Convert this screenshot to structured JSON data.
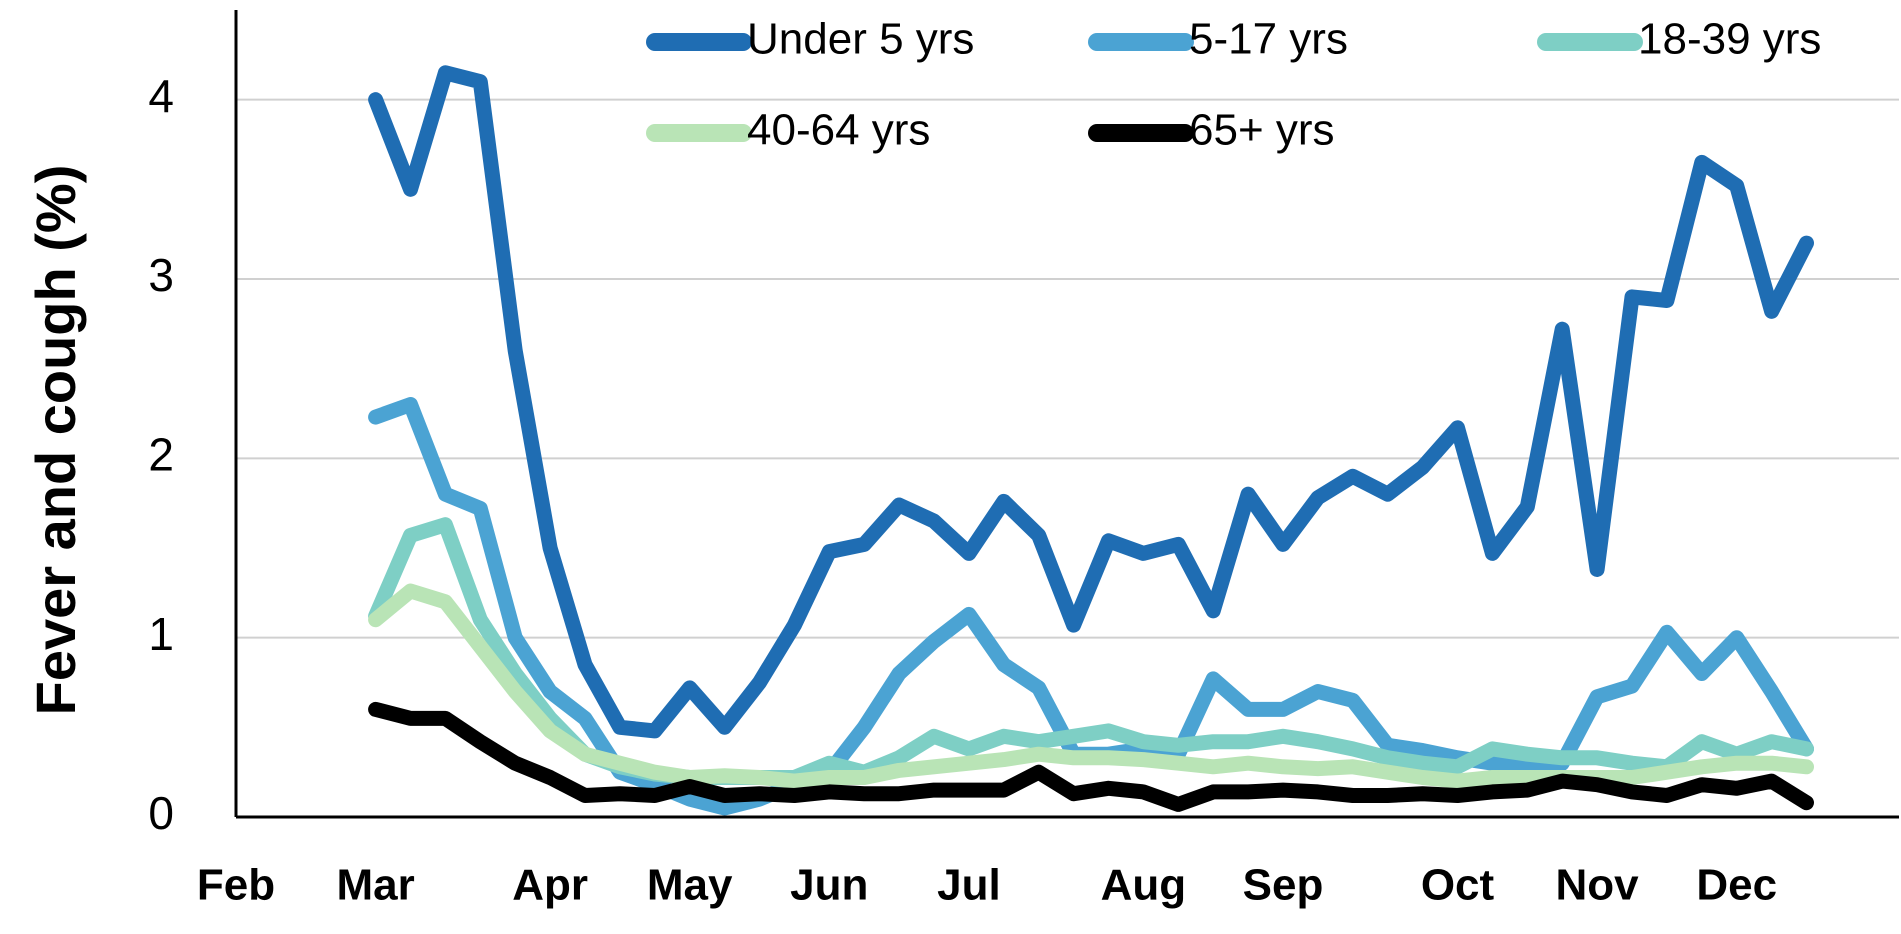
{
  "chart_data": {
    "type": "line",
    "ylabel": "Fever and cough (%)",
    "categories": [
      "Feb",
      null,
      null,
      null,
      "Mar",
      null,
      null,
      null,
      null,
      "Apr",
      null,
      null,
      null,
      "May",
      null,
      null,
      null,
      "Jun",
      null,
      null,
      null,
      "Jul",
      null,
      null,
      null,
      null,
      "Aug",
      null,
      null,
      null,
      "Sep",
      null,
      null,
      null,
      null,
      "Oct",
      null,
      null,
      null,
      "Nov",
      null,
      null,
      null,
      "Dec",
      null,
      null
    ],
    "series": [
      {
        "name": "Under 5 yrs",
        "color": "#1f6db3",
        "values": [
          null,
          null,
          null,
          null,
          4.0,
          3.5,
          4.15,
          4.1,
          2.6,
          1.5,
          0.85,
          0.5,
          0.48,
          0.72,
          0.5,
          0.75,
          1.07,
          1.48,
          1.52,
          1.74,
          1.65,
          1.47,
          1.76,
          1.57,
          1.07,
          1.54,
          1.47,
          1.52,
          1.15,
          1.8,
          1.52,
          1.78,
          1.9,
          1.8,
          1.95,
          2.17,
          1.47,
          1.73,
          2.72,
          1.38,
          2.9,
          2.88,
          3.65,
          3.52,
          2.82,
          3.2
        ]
      },
      {
        "name": "5-17 yrs",
        "color": "#4ba3d3",
        "values": [
          null,
          null,
          null,
          null,
          2.23,
          2.3,
          1.8,
          1.72,
          1.0,
          0.7,
          0.55,
          0.25,
          0.18,
          0.1,
          0.05,
          0.1,
          0.18,
          0.25,
          0.5,
          0.8,
          0.98,
          1.13,
          0.85,
          0.72,
          0.35,
          0.35,
          0.38,
          0.35,
          0.77,
          0.6,
          0.6,
          0.7,
          0.65,
          0.4,
          0.37,
          0.33,
          0.3,
          0.3,
          0.3,
          0.67,
          0.73,
          1.03,
          0.8,
          1.0,
          0.7,
          0.38
        ]
      },
      {
        "name": "18-39 yrs",
        "color": "#7ecfc5",
        "values": [
          null,
          null,
          null,
          null,
          1.12,
          1.57,
          1.63,
          1.1,
          0.8,
          0.55,
          0.35,
          0.28,
          0.24,
          0.22,
          0.22,
          0.22,
          0.22,
          0.3,
          0.25,
          0.33,
          0.45,
          0.38,
          0.45,
          0.42,
          0.45,
          0.48,
          0.42,
          0.4,
          0.42,
          0.42,
          0.45,
          0.42,
          0.38,
          0.33,
          0.3,
          0.28,
          0.38,
          0.35,
          0.33,
          0.33,
          0.3,
          0.28,
          0.42,
          0.35,
          0.42,
          0.38
        ]
      },
      {
        "name": "40-64 yrs",
        "color": "#b9e4b6",
        "values": [
          null,
          null,
          null,
          null,
          1.1,
          1.26,
          1.2,
          0.95,
          0.7,
          0.48,
          0.35,
          0.3,
          0.25,
          0.22,
          0.23,
          0.22,
          0.2,
          0.22,
          0.22,
          0.26,
          0.28,
          0.3,
          0.32,
          0.35,
          0.33,
          0.33,
          0.32,
          0.3,
          0.28,
          0.3,
          0.28,
          0.27,
          0.28,
          0.25,
          0.22,
          0.2,
          0.22,
          0.22,
          0.22,
          0.22,
          0.22,
          0.25,
          0.28,
          0.3,
          0.3,
          0.28
        ]
      },
      {
        "name": "65+ yrs",
        "color": "#000000",
        "values": [
          null,
          null,
          null,
          null,
          0.6,
          0.55,
          0.55,
          0.42,
          0.3,
          0.22,
          0.12,
          0.13,
          0.12,
          0.17,
          0.12,
          0.13,
          0.12,
          0.14,
          0.13,
          0.13,
          0.15,
          0.15,
          0.15,
          0.25,
          0.13,
          0.16,
          0.14,
          0.07,
          0.14,
          0.14,
          0.15,
          0.14,
          0.12,
          0.12,
          0.13,
          0.12,
          0.14,
          0.15,
          0.2,
          0.18,
          0.14,
          0.12,
          0.18,
          0.16,
          0.2,
          0.08
        ]
      }
    ],
    "ylim": [
      0,
      4.5
    ],
    "yticks": [
      0,
      1,
      2,
      3,
      4
    ],
    "grid": true
  }
}
